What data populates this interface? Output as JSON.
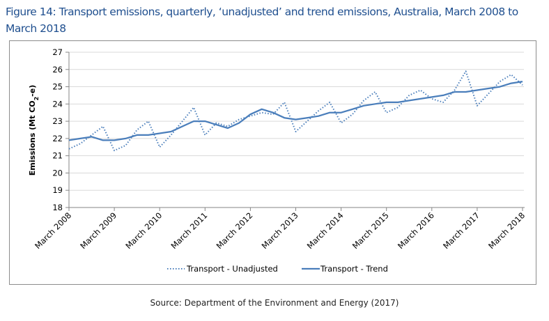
{
  "figure": {
    "title": "Figure 14: Transport emissions, quarterly, ‘unadjusted’ and trend emissions, Australia, March 2008 to March 2018",
    "source": "Source: Department of the Environment and Energy (2017)"
  },
  "chart_data": {
    "type": "line",
    "title": "Figure 14: Transport emissions, quarterly, ‘unadjusted’ and trend emissions, Australia, March 2008 to March 2018",
    "xlabel": "",
    "ylabel": "Emissions (Mt CO2-e)",
    "ylabel_parts": {
      "main": "Emissions (Mt CO",
      "sub": "2",
      "tail": "-e)"
    },
    "ylim": [
      18,
      27
    ],
    "yticks": [
      18,
      19,
      20,
      21,
      22,
      23,
      24,
      25,
      26,
      27
    ],
    "xtick_labels": [
      "March 2008",
      "March 2009",
      "March 2010",
      "March 2011",
      "March 2012",
      "March 2013",
      "March 2014",
      "March 2015",
      "March 2016",
      "March 2017",
      "March 2018"
    ],
    "x_quarters": 41,
    "grid": "horizontal",
    "legend_position": "bottom",
    "colors": {
      "series": "#4a7ebb",
      "grid": "#d9d9d9",
      "axis": "#868686"
    },
    "series": [
      {
        "name": "Transport - Unadjusted",
        "style": "dotted",
        "values": [
          21.4,
          21.7,
          22.2,
          22.7,
          21.3,
          21.6,
          22.5,
          23.0,
          21.5,
          22.2,
          23.0,
          23.8,
          22.2,
          22.9,
          22.7,
          23.1,
          23.3,
          23.5,
          23.4,
          24.1,
          22.4,
          23.0,
          23.6,
          24.1,
          22.9,
          23.4,
          24.2,
          24.7,
          23.5,
          23.8,
          24.5,
          24.8,
          24.3,
          24.1,
          24.8,
          25.9,
          23.9,
          24.6,
          25.3,
          25.7,
          25.1
        ]
      },
      {
        "name": "Transport - Trend",
        "style": "solid",
        "values": [
          21.9,
          22.0,
          22.1,
          21.9,
          21.9,
          22.0,
          22.2,
          22.2,
          22.3,
          22.4,
          22.7,
          23.0,
          23.0,
          22.8,
          22.6,
          22.9,
          23.4,
          23.7,
          23.5,
          23.2,
          23.1,
          23.2,
          23.3,
          23.5,
          23.5,
          23.7,
          23.9,
          24.0,
          24.1,
          24.1,
          24.2,
          24.3,
          24.4,
          24.5,
          24.7,
          24.7,
          24.8,
          24.9,
          25.0,
          25.2,
          25.3
        ]
      }
    ]
  }
}
